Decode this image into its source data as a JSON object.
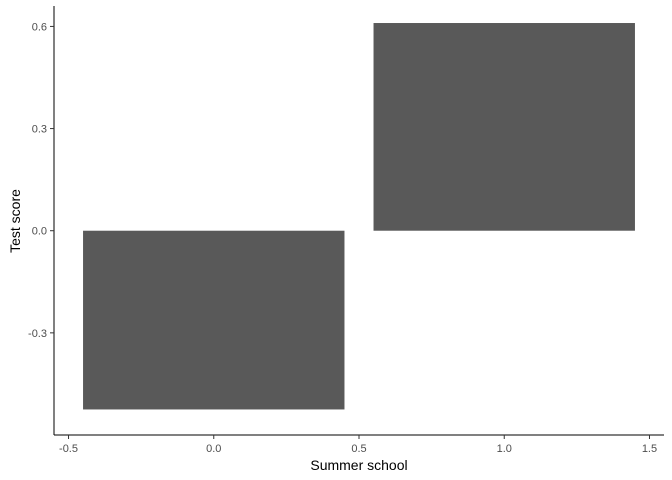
{
  "chart_data": {
    "type": "bar",
    "title": "",
    "xlabel": "Summer school",
    "ylabel": "Test score",
    "x": [
      0,
      1
    ],
    "values": [
      -0.525,
      0.61
    ],
    "bar_width": 0.9,
    "xlim": [
      -0.55,
      1.55
    ],
    "ylim": [
      -0.6,
      0.66
    ],
    "x_ticks": [
      -0.5,
      0.0,
      0.5,
      1.0,
      1.5
    ],
    "x_tick_labels": [
      "-0.5",
      "0.0",
      "0.5",
      "1.0",
      "1.5"
    ],
    "y_ticks": [
      -0.3,
      0.0,
      0.3,
      0.6
    ],
    "y_tick_labels": [
      "-0.3",
      "0.0",
      "0.3",
      "0.6"
    ],
    "grid": false,
    "legend": "none",
    "bar_color": "#595959",
    "axis_color": "#000000",
    "tick_label_color": "#4d4d4d"
  }
}
